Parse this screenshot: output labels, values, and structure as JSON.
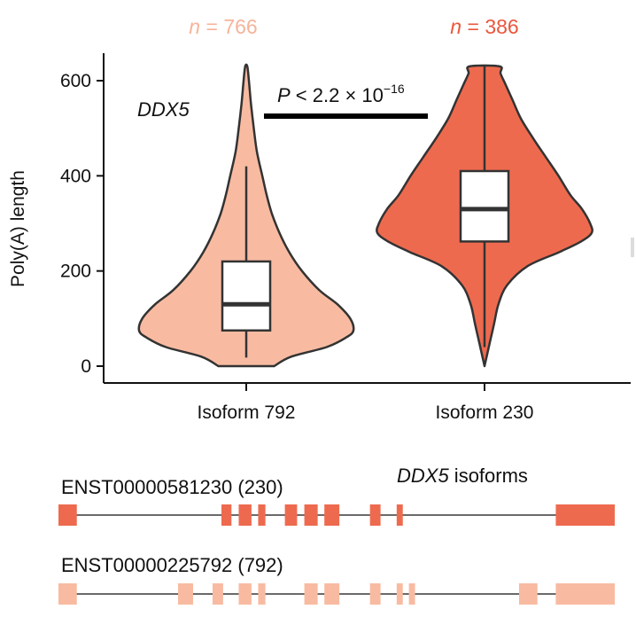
{
  "colors": {
    "isoform_792": "#f8bba1",
    "isoform_230": "#ee6a4f",
    "outline": "#333333",
    "n_792_text": "#f6b49a",
    "n_230_text": "#e9573c"
  },
  "chart_data": {
    "type": "violin",
    "gene": "DDX5",
    "ylabel": "Poly(A) length",
    "ylim": [
      -40,
      660
    ],
    "yticks": [
      0,
      200,
      400,
      600
    ],
    "categories": [
      "Isoform 792",
      "Isoform 230"
    ],
    "n_labels": [
      {
        "prefix": "n",
        "eq": " = ",
        "value": "766"
      },
      {
        "prefix": "n",
        "eq": " = ",
        "value": "386"
      }
    ],
    "significance": {
      "P": "P",
      "lt": " < 2.2 × 10",
      "exp": "−16"
    },
    "series": [
      {
        "name": "Isoform 792",
        "box": {
          "whisker_low": 18,
          "q1": 75,
          "median": 130,
          "q3": 220,
          "whisker_high": 420
        },
        "violin_range": [
          0,
          630
        ],
        "density_profile": [
          [
            0,
            0.26
          ],
          [
            20,
            0.42
          ],
          [
            40,
            0.75
          ],
          [
            60,
            0.93
          ],
          [
            75,
            1.0
          ],
          [
            100,
            0.97
          ],
          [
            130,
            0.85
          ],
          [
            160,
            0.68
          ],
          [
            200,
            0.52
          ],
          [
            240,
            0.4
          ],
          [
            280,
            0.31
          ],
          [
            320,
            0.24
          ],
          [
            360,
            0.19
          ],
          [
            400,
            0.15
          ],
          [
            450,
            0.1
          ],
          [
            500,
            0.07
          ],
          [
            550,
            0.045
          ],
          [
            600,
            0.025
          ],
          [
            630,
            0.01
          ]
        ]
      },
      {
        "name": "Isoform 230",
        "box": {
          "whisker_low": 40,
          "q1": 262,
          "median": 330,
          "q3": 410,
          "whisker_high": 630
        },
        "violin_range": [
          0,
          630
        ],
        "density_profile": [
          [
            0,
            0.0
          ],
          [
            20,
            0.02
          ],
          [
            50,
            0.05
          ],
          [
            90,
            0.09
          ],
          [
            130,
            0.13
          ],
          [
            170,
            0.21
          ],
          [
            210,
            0.4
          ],
          [
            240,
            0.7
          ],
          [
            262,
            0.9
          ],
          [
            280,
            1.0
          ],
          [
            300,
            0.985
          ],
          [
            330,
            0.91
          ],
          [
            360,
            0.8
          ],
          [
            400,
            0.69
          ],
          [
            440,
            0.57
          ],
          [
            480,
            0.45
          ],
          [
            520,
            0.34
          ],
          [
            560,
            0.26
          ],
          [
            590,
            0.2
          ],
          [
            615,
            0.15
          ],
          [
            630,
            0.14
          ]
        ]
      }
    ]
  },
  "isoforms": {
    "title_gene": "DDX5",
    "title_rest": " isoforms",
    "tracks": [
      {
        "label": "ENST00000581230 (230)",
        "color": "#ee6a4f",
        "exons": [
          [
            0,
            0.033
          ],
          [
            0.293,
            0.311
          ],
          [
            0.324,
            0.347
          ],
          [
            0.359,
            0.372
          ],
          [
            0.407,
            0.429
          ],
          [
            0.442,
            0.466
          ],
          [
            0.478,
            0.505
          ],
          [
            0.56,
            0.579
          ],
          [
            0.608,
            0.619
          ],
          [
            0.894,
            1.0
          ]
        ]
      },
      {
        "label": "ENST00000225792 (792)",
        "color": "#f8bba1",
        "exons": [
          [
            0,
            0.033
          ],
          [
            0.215,
            0.242
          ],
          [
            0.277,
            0.296
          ],
          [
            0.324,
            0.347
          ],
          [
            0.359,
            0.372
          ],
          [
            0.442,
            0.466
          ],
          [
            0.478,
            0.505
          ],
          [
            0.56,
            0.579
          ],
          [
            0.608,
            0.619
          ],
          [
            0.63,
            0.641
          ],
          [
            0.828,
            0.861
          ],
          [
            0.894,
            1.0
          ]
        ]
      }
    ]
  }
}
